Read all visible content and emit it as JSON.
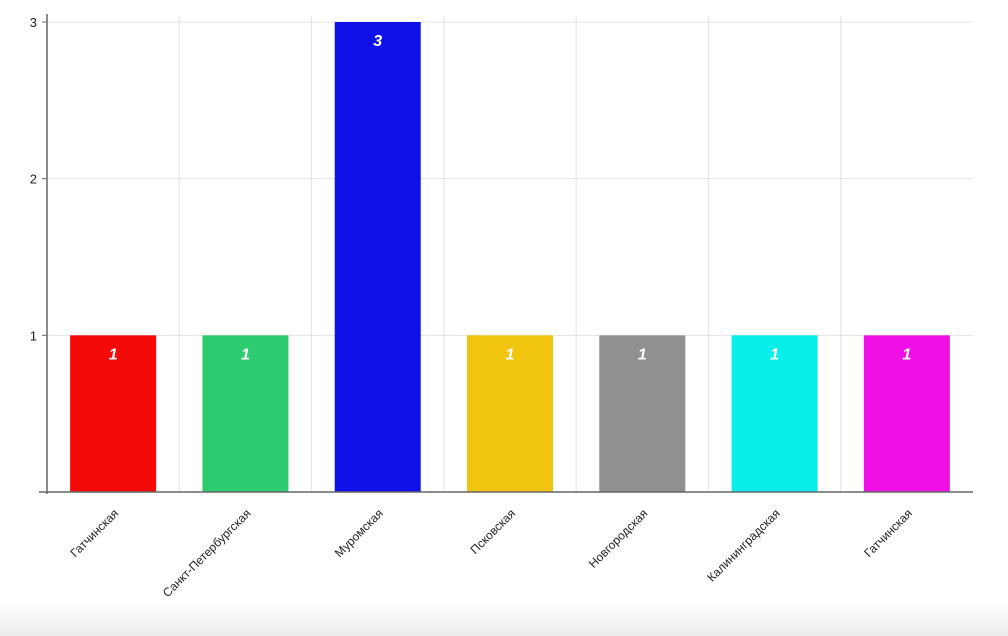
{
  "chart_data": {
    "type": "bar",
    "categories": [
      "Гатчинская",
      "Санкт-Петербургская",
      "Муромская",
      "Псковская",
      "Новгородская",
      "Калининградская",
      "Гатчинская"
    ],
    "values": [
      1,
      1,
      3,
      1,
      1,
      1,
      1
    ],
    "data_labels": [
      "1",
      "1",
      "3",
      "1",
      "1",
      "1",
      "1"
    ],
    "colors": [
      "#f50a0a",
      "#2ecc71",
      "#1010e8",
      "#f1c40f",
      "#8e9091",
      "#08eeea",
      "#ef10e6"
    ],
    "y_ticks": [
      "1",
      "2",
      "3"
    ],
    "ylim": [
      0,
      3
    ],
    "title": "",
    "xlabel": "",
    "ylabel": "",
    "grid": true,
    "legend": "none"
  }
}
